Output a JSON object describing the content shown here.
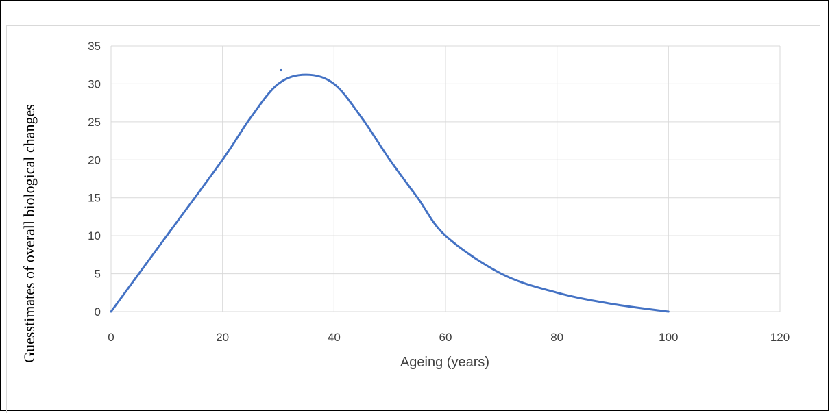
{
  "chart_data": {
    "type": "line",
    "title": "",
    "xlabel": "Ageing (years)",
    "ylabel": "Guesstimates of overall biological changes",
    "xlim": [
      0,
      120
    ],
    "ylim": [
      0,
      35
    ],
    "x_ticks": [
      0,
      20,
      40,
      60,
      80,
      100,
      120
    ],
    "y_ticks": [
      0,
      5,
      10,
      15,
      20,
      25,
      30,
      35
    ],
    "grid": true,
    "smooth": true,
    "legend": "none",
    "series": [
      {
        "color": "#4472c4",
        "x": [
          0,
          10,
          20,
          25,
          30,
          35,
          40,
          45,
          50,
          55,
          60,
          70,
          80,
          90,
          100
        ],
        "y": [
          0,
          10,
          20,
          25.5,
          30,
          31.2,
          30,
          25.5,
          20,
          15,
          10,
          5,
          2.5,
          1,
          0
        ]
      }
    ],
    "annotations": [
      {
        "type": "dot",
        "x": 30.5,
        "y": 31.8,
        "color": "#4472c4"
      }
    ]
  }
}
